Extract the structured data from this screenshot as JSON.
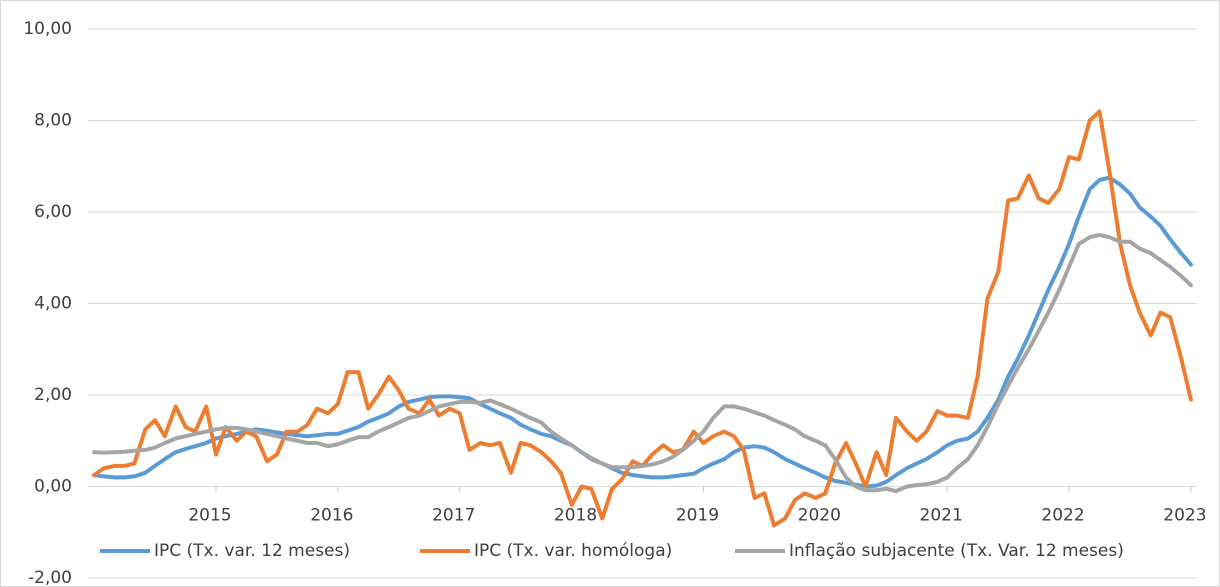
{
  "chart_data": {
    "type": "line",
    "x": [
      2014,
      2014.08,
      2014.17,
      2014.25,
      2014.33,
      2014.42,
      2014.5,
      2014.58,
      2014.67,
      2014.75,
      2014.83,
      2014.92,
      2015,
      2015.08,
      2015.17,
      2015.25,
      2015.33,
      2015.42,
      2015.5,
      2015.58,
      2015.67,
      2015.75,
      2015.83,
      2015.92,
      2016,
      2016.08,
      2016.17,
      2016.25,
      2016.33,
      2016.42,
      2016.5,
      2016.58,
      2016.67,
      2016.75,
      2016.83,
      2016.92,
      2017,
      2017.08,
      2017.17,
      2017.25,
      2017.33,
      2017.42,
      2017.5,
      2017.58,
      2017.67,
      2017.75,
      2017.83,
      2017.92,
      2018,
      2018.08,
      2018.17,
      2018.25,
      2018.33,
      2018.42,
      2018.5,
      2018.58,
      2018.67,
      2018.75,
      2018.83,
      2018.92,
      2019,
      2019.08,
      2019.17,
      2019.25,
      2019.33,
      2019.42,
      2019.5,
      2019.58,
      2019.67,
      2019.75,
      2019.83,
      2019.92,
      2020,
      2020.08,
      2020.17,
      2020.25,
      2020.33,
      2020.42,
      2020.5,
      2020.58,
      2020.67,
      2020.75,
      2020.83,
      2020.92,
      2021,
      2021.08,
      2021.17,
      2021.25,
      2021.33,
      2021.42,
      2021.5,
      2021.58,
      2021.67,
      2021.75,
      2021.83,
      2021.92,
      2022,
      2022.08,
      2022.17,
      2022.25,
      2022.33,
      2022.42,
      2022.5,
      2022.58,
      2022.67,
      2022.75,
      2022.83,
      2022.92,
      2023
    ],
    "series": [
      {
        "name": "IPC (Tx. var. 12 meses)",
        "color": "#5b9bd5",
        "values": [
          0.25,
          0.22,
          0.2,
          0.2,
          0.22,
          0.3,
          0.45,
          0.6,
          0.75,
          0.82,
          0.88,
          0.95,
          1.05,
          1.1,
          1.15,
          1.2,
          1.25,
          1.22,
          1.18,
          1.15,
          1.12,
          1.1,
          1.12,
          1.15,
          1.15,
          1.22,
          1.3,
          1.42,
          1.5,
          1.6,
          1.75,
          1.85,
          1.9,
          1.95,
          1.97,
          1.97,
          1.95,
          1.93,
          1.8,
          1.7,
          1.6,
          1.5,
          1.35,
          1.25,
          1.15,
          1.1,
          1.0,
          0.9,
          0.75,
          0.6,
          0.5,
          0.4,
          0.3,
          0.25,
          0.22,
          0.2,
          0.2,
          0.22,
          0.25,
          0.28,
          0.4,
          0.5,
          0.6,
          0.75,
          0.85,
          0.88,
          0.85,
          0.75,
          0.6,
          0.5,
          0.4,
          0.3,
          0.2,
          0.12,
          0.08,
          0.04,
          0.0,
          0.02,
          0.1,
          0.25,
          0.4,
          0.5,
          0.6,
          0.75,
          0.9,
          1.0,
          1.05,
          1.2,
          1.5,
          1.9,
          2.4,
          2.8,
          3.3,
          3.8,
          4.3,
          4.8,
          5.3,
          5.9,
          6.5,
          6.7,
          6.75,
          6.6,
          6.4,
          6.1,
          5.9,
          5.7,
          5.4,
          5.1,
          4.85
        ]
      },
      {
        "name": "IPC (Tx. var. homóloga)",
        "color": "#ed7d31",
        "values": [
          0.25,
          0.4,
          0.45,
          0.45,
          0.5,
          1.25,
          1.45,
          1.1,
          1.75,
          1.3,
          1.2,
          1.75,
          0.7,
          1.3,
          1.0,
          1.2,
          1.1,
          0.55,
          0.7,
          1.2,
          1.2,
          1.35,
          1.7,
          1.6,
          1.8,
          2.5,
          2.5,
          1.7,
          2.0,
          2.4,
          2.1,
          1.7,
          1.6,
          1.9,
          1.55,
          1.7,
          1.6,
          0.8,
          0.95,
          0.9,
          0.95,
          0.3,
          0.95,
          0.9,
          0.75,
          0.55,
          0.3,
          -0.4,
          0.0,
          -0.05,
          -0.7,
          -0.05,
          0.15,
          0.55,
          0.45,
          0.7,
          0.9,
          0.75,
          0.8,
          1.2,
          0.95,
          1.1,
          1.2,
          1.1,
          0.8,
          -0.25,
          -0.15,
          -0.85,
          -0.7,
          -0.3,
          -0.15,
          -0.25,
          -0.15,
          0.5,
          0.95,
          0.5,
          0.0,
          0.75,
          0.25,
          1.5,
          1.2,
          1.0,
          1.2,
          1.65,
          1.55,
          1.55,
          1.5,
          2.4,
          4.1,
          4.7,
          6.25,
          6.3,
          6.8,
          6.3,
          6.2,
          6.5,
          7.2,
          7.15,
          8.0,
          8.2,
          6.9,
          5.3,
          4.4,
          3.8,
          3.3,
          3.8,
          3.7,
          2.8,
          1.9
        ]
      },
      {
        "name": "Inflação subjacente (Tx. Var. 12 meses)",
        "color": "#a5a5a5",
        "values": [
          0.75,
          0.74,
          0.75,
          0.76,
          0.78,
          0.8,
          0.85,
          0.95,
          1.05,
          1.1,
          1.15,
          1.2,
          1.25,
          1.28,
          1.28,
          1.25,
          1.2,
          1.15,
          1.1,
          1.05,
          1.0,
          0.95,
          0.95,
          0.88,
          0.92,
          1.0,
          1.08,
          1.08,
          1.2,
          1.3,
          1.4,
          1.5,
          1.55,
          1.65,
          1.75,
          1.8,
          1.85,
          1.85,
          1.83,
          1.88,
          1.8,
          1.7,
          1.6,
          1.5,
          1.4,
          1.2,
          1.05,
          0.9,
          0.75,
          0.62,
          0.5,
          0.42,
          0.42,
          0.42,
          0.45,
          0.48,
          0.55,
          0.65,
          0.8,
          1.0,
          1.2,
          1.5,
          1.75,
          1.75,
          1.7,
          1.62,
          1.55,
          1.45,
          1.35,
          1.25,
          1.1,
          1.0,
          0.9,
          0.6,
          0.2,
          0.0,
          -0.08,
          -0.08,
          -0.05,
          -0.1,
          0.0,
          0.03,
          0.05,
          0.1,
          0.2,
          0.4,
          0.6,
          0.9,
          1.3,
          1.8,
          2.2,
          2.6,
          3.0,
          3.4,
          3.8,
          4.3,
          4.8,
          5.3,
          5.45,
          5.5,
          5.45,
          5.35,
          5.35,
          5.2,
          5.1,
          4.95,
          4.8,
          4.6,
          4.4
        ]
      }
    ],
    "xlim": [
      2013.95,
      2023.05
    ],
    "xticks": [
      2015,
      2016,
      2017,
      2018,
      2019,
      2020,
      2021,
      2022,
      2023
    ],
    "ylim": [
      -2,
      10
    ],
    "yticks": [
      {
        "value": -2,
        "label": "-2,00"
      },
      {
        "value": 0,
        "label": "0,00"
      },
      {
        "value": 2,
        "label": "2,00"
      },
      {
        "value": 4,
        "label": "4,00"
      },
      {
        "value": 6,
        "label": "6,00"
      },
      {
        "value": 8,
        "label": "8,00"
      },
      {
        "value": 10,
        "label": "10,00"
      }
    ],
    "grid": true,
    "legend": "bottom"
  }
}
